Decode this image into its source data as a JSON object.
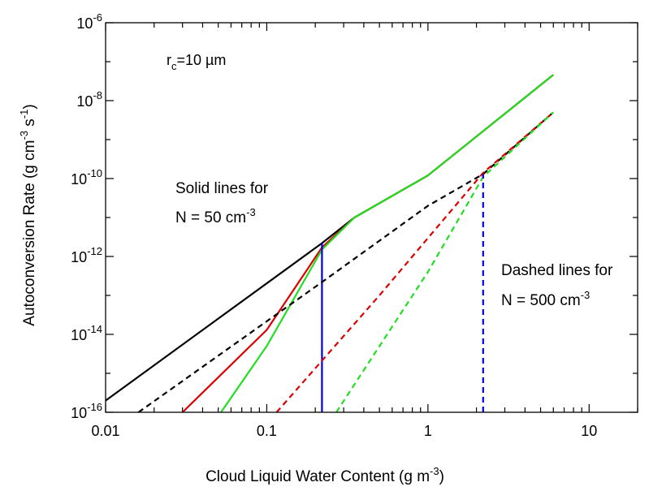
{
  "chart_data": {
    "type": "line",
    "xscale": "log",
    "yscale": "log",
    "xlim": [
      0.01,
      20
    ],
    "ylim": [
      1e-16,
      1e-06
    ],
    "xlabel": {
      "main": "Cloud Liquid Water Content (g m",
      "sup": "-3",
      "tail": ")"
    },
    "ylabel": {
      "main": "Autoconversion Rate (g cm",
      "sup1": "-3",
      "mid": " s",
      "sup2": "-1",
      "tail": ")"
    },
    "x_ticks": [
      {
        "value": 0.01,
        "label": "0.01"
      },
      {
        "value": 0.1,
        "label": "0.1"
      },
      {
        "value": 1,
        "label": "1"
      },
      {
        "value": 10,
        "label": "10"
      }
    ],
    "y_ticks": [
      {
        "value": 1e-16,
        "base": "10",
        "exp": "-16"
      },
      {
        "value": 1e-14,
        "base": "10",
        "exp": "-14"
      },
      {
        "value": 1e-12,
        "base": "10",
        "exp": "-12"
      },
      {
        "value": 1e-10,
        "base": "10",
        "exp": "-10"
      },
      {
        "value": 1e-08,
        "base": "10",
        "exp": "-8"
      },
      {
        "value": 1e-06,
        "base": "10",
        "exp": "-6"
      }
    ],
    "annotations": {
      "rc": {
        "pre": "r",
        "sub": "c",
        "post": "=10 µm"
      },
      "solid_line1": "Solid lines for",
      "solid_line2": {
        "main": "N = 50 cm",
        "sup": "-3"
      },
      "dashed_line1": "Dashed lines for",
      "dashed_line2": {
        "main": "N = 500 cm",
        "sup": "-3"
      }
    },
    "series": [
      {
        "color": "#000000",
        "dash": false,
        "points": [
          [
            0.01,
            2e-16
          ],
          [
            0.22,
            2.2e-12
          ],
          [
            0.35,
            1e-11
          ],
          [
            1,
            1.2e-10
          ],
          [
            6,
            4.6e-08
          ]
        ]
      },
      {
        "color": "#dd0000",
        "dash": false,
        "points": [
          [
            0.03,
            1e-16
          ],
          [
            0.1,
            1.3e-14
          ],
          [
            0.22,
            1.7e-12
          ],
          [
            0.35,
            1e-11
          ],
          [
            1,
            1.2e-10
          ],
          [
            6,
            4.6e-08
          ]
        ]
      },
      {
        "color": "#22dd22",
        "dash": false,
        "points": [
          [
            0.052,
            1e-16
          ],
          [
            0.1,
            5e-15
          ],
          [
            0.22,
            1.5e-12
          ],
          [
            0.35,
            1e-11
          ],
          [
            1,
            1.2e-10
          ],
          [
            6,
            4.6e-08
          ]
        ]
      },
      {
        "color": "#0000dd",
        "dash": false,
        "points": [
          [
            0.22,
            1e-16
          ],
          [
            0.22,
            2.2e-12
          ]
        ]
      },
      {
        "color": "#000000",
        "dash": true,
        "points": [
          [
            0.016,
            1e-16
          ],
          [
            0.22,
            2.2e-13
          ],
          [
            1,
            2e-11
          ],
          [
            2.2,
            1.3e-10
          ],
          [
            6,
            5e-09
          ]
        ]
      },
      {
        "color": "#dd0000",
        "dash": true,
        "points": [
          [
            0.115,
            1e-16
          ],
          [
            0.5,
            1e-13
          ],
          [
            2.2,
            1.4e-10
          ],
          [
            6,
            5e-09
          ]
        ]
      },
      {
        "color": "#22dd22",
        "dash": true,
        "points": [
          [
            0.27,
            1e-16
          ],
          [
            1,
            4e-13
          ],
          [
            2.2,
            1.1e-10
          ],
          [
            6,
            5e-09
          ]
        ]
      },
      {
        "color": "#0000dd",
        "dash": true,
        "points": [
          [
            2.2,
            1e-16
          ],
          [
            2.2,
            1.3e-10
          ]
        ]
      }
    ]
  }
}
